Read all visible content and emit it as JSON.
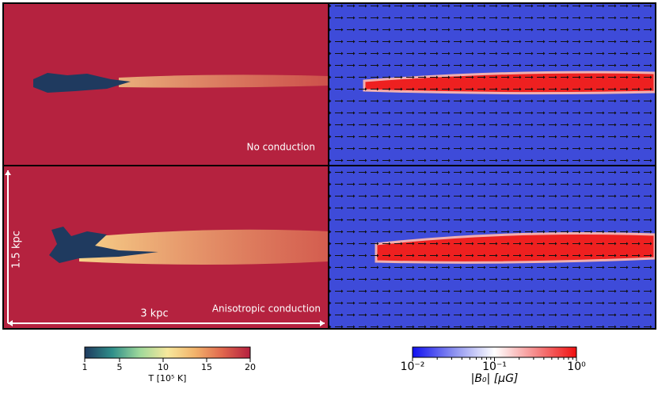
{
  "panels": {
    "top_left_label": "No conduction",
    "bottom_left_label": "Anisotropic conduction",
    "scale_x": "3 kpc",
    "scale_y": "1.5 kpc"
  },
  "chart_data": [
    {
      "type": "colorbar",
      "xlabel": "T [10⁵ K]",
      "xlim": [
        1,
        20
      ],
      "xticks": [
        1,
        5,
        10,
        15,
        20
      ],
      "log": false,
      "colors": [
        "#1f3a5f",
        "#2f8f8a",
        "#9fd99b",
        "#f7e89c",
        "#f2b36b",
        "#e0664d",
        "#b5203f"
      ]
    },
    {
      "type": "colorbar",
      "xlabel": "|B₀| [μG]",
      "xlim": [
        0.01,
        1
      ],
      "log": true,
      "xticks": [
        {
          "value": 0.01,
          "label": "10⁻²"
        },
        {
          "value": 0.1,
          "label": "10⁻¹"
        },
        {
          "value": 1,
          "label": "10⁰"
        }
      ],
      "colors": [
        "#1010f0",
        "#8a8ff0",
        "#ffffff",
        "#f58a8a",
        "#f01010"
      ]
    }
  ]
}
